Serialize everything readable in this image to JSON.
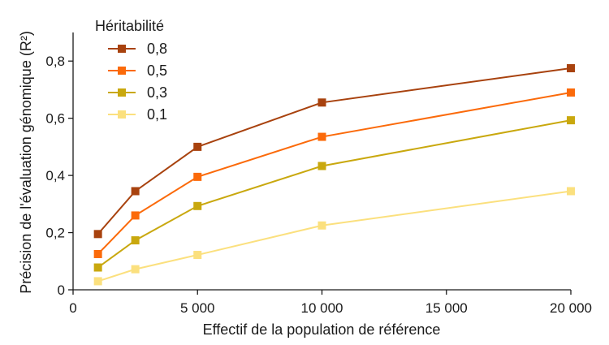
{
  "chart_data": {
    "type": "line",
    "xlabel": "Effectif de la population de référence",
    "ylabel": "Précision de l'évaluation génomique (R²)",
    "xlim": [
      0,
      20000
    ],
    "ylim": [
      0,
      0.9
    ],
    "x_ticks": [
      {
        "value": 0,
        "label": "0"
      },
      {
        "value": 5000,
        "label": "5 000"
      },
      {
        "value": 10000,
        "label": "10 000"
      },
      {
        "value": 15000,
        "label": "15 000"
      },
      {
        "value": 20000,
        "label": "20 000"
      }
    ],
    "y_ticks": [
      {
        "value": 0,
        "label": "0"
      },
      {
        "value": 0.2,
        "label": "0,2"
      },
      {
        "value": 0.4,
        "label": "0,4"
      },
      {
        "value": 0.6,
        "label": "0,6"
      },
      {
        "value": 0.8,
        "label": "0,8"
      }
    ],
    "grid": false,
    "legend": {
      "title": "Héritabilité",
      "position": "top-left"
    },
    "x": [
      1000,
      2500,
      5000,
      10000,
      20000
    ],
    "series": [
      {
        "name": "0,8",
        "color": "#a8420e",
        "values": [
          0.195,
          0.345,
          0.5,
          0.655,
          0.775
        ]
      },
      {
        "name": "0,5",
        "color": "#fb6a0a",
        "values": [
          0.125,
          0.26,
          0.395,
          0.535,
          0.69
        ]
      },
      {
        "name": "0,3",
        "color": "#c9a80e",
        "values": [
          0.078,
          0.173,
          0.293,
          0.433,
          0.593
        ]
      },
      {
        "name": "0,1",
        "color": "#fbe07e",
        "values": [
          0.03,
          0.072,
          0.122,
          0.225,
          0.345
        ]
      }
    ]
  }
}
